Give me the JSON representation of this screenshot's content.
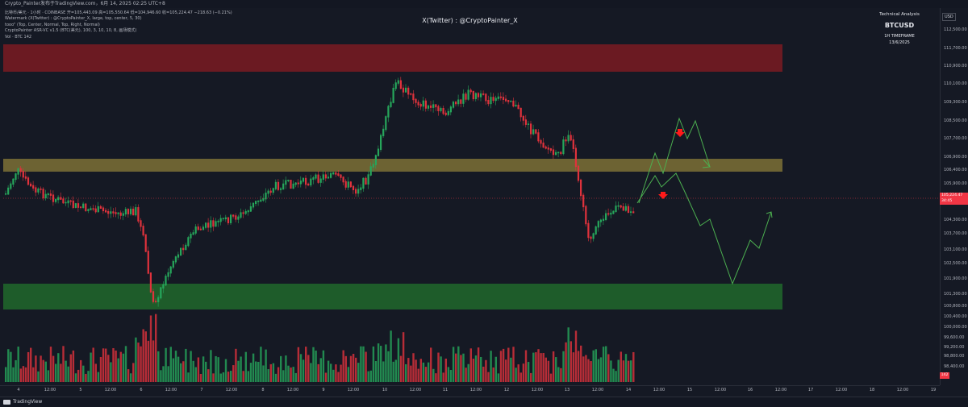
{
  "header": {
    "text": "Crypto_Painter发布于TradingView.com，6月 14, 2025 02:25 UTC+8"
  },
  "info": {
    "line1": "比特币/美元 · 1小时 · COINBASE  开=105,443.09  高=105,550.64  低=104,946.60  收=105,224.47  −218.63 (−0.21%)",
    "line2": "Watermark (X(Twitter) : @CryptoPainter_X, large, top, center, 5, 30)",
    "line3": "tooo\" (Top, Center, Normal, Top, Right, Normal)",
    "line4": "CryptoPainter ASR-VC v1.5 (BTC(美元), 100, 3, 10, 10, 8, 画场模式)",
    "line5": "Vol · BTC  142"
  },
  "watermark": "X(Twitter) : @CryptoPainter_X",
  "analysis_box": {
    "label": "Technical Analysis",
    "symbol": "BTCUSD",
    "timeframe": "1H TIMEFRAME",
    "date": "13/6/2025"
  },
  "axis": {
    "currency": "USD",
    "price_ticks": [
      "112,500.00",
      "111,700.00",
      "110,900.00",
      "110,100.00",
      "109,300.00",
      "108,500.00",
      "107,700.00",
      "106,900.00",
      "106,400.00",
      "105,900.00",
      "105,400.00",
      "104,300.00",
      "103,700.00",
      "103,100.00",
      "102,500.00",
      "101,900.00",
      "101,300.00",
      "100,800.00",
      "100,400.00",
      "100,000.00",
      "99,600.00",
      "99,200.00",
      "98,800.00",
      "98,400.00"
    ],
    "time_ticks": [
      "4",
      "12:00",
      "5",
      "12:00",
      "6",
      "12:00",
      "7",
      "12:00",
      "8",
      "12:00",
      "9",
      "12:00",
      "10",
      "12:00",
      "11",
      "12:00",
      "12",
      "12:00",
      "13",
      "12:00",
      "14",
      "12:00",
      "15",
      "12:00",
      "16",
      "12:00",
      "17",
      "12:00",
      "18",
      "12:00",
      "19"
    ]
  },
  "current_price": {
    "price": "105,224.47",
    "countdown": "34:45"
  },
  "volume_badge": "142",
  "footer": {
    "brand": "TradingView"
  },
  "zones": {
    "resistance_color": "#6b1a22",
    "mid_color": "#857a3a",
    "support_color": "#1e5c2a"
  },
  "colors": {
    "up": "#26a65b",
    "down": "#e0323c",
    "projection": "#4caf50",
    "arrow": "#ff1a1a"
  }
}
